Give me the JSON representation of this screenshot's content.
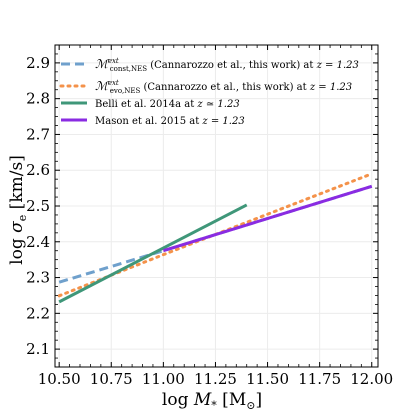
{
  "chart_data": {
    "type": "line",
    "xlabel": "log M_* [M_⊙]",
    "ylabel": "log σ_e [km/s]",
    "xlim": [
      10.48,
      12.03
    ],
    "ylim": [
      2.05,
      2.95
    ],
    "x_ticks": [
      "10.50",
      "10.75",
      "11.00",
      "11.25",
      "11.50",
      "11.75",
      "12.00"
    ],
    "x_tick_values": [
      10.5,
      10.75,
      11.0,
      11.25,
      11.5,
      11.75,
      12.0
    ],
    "y_ticks": [
      "2.1",
      "2.2",
      "2.3",
      "2.4",
      "2.5",
      "2.6",
      "2.7",
      "2.8",
      "2.9"
    ],
    "y_tick_values": [
      2.1,
      2.2,
      2.3,
      2.4,
      2.5,
      2.6,
      2.7,
      2.8,
      2.9
    ],
    "grid": true,
    "legend_placement": "top-left",
    "series": [
      {
        "name": "(Cannarozzo et al., this work) at z = 1.23",
        "legend_symbol": "M^{ext}_{const,NES}",
        "style": "dashed",
        "color": "#6fa0cc",
        "x": [
          10.5,
          11.0,
          12.0
        ],
        "y": [
          2.287,
          2.375,
          2.555
        ]
      },
      {
        "name": "(Cannarozzo et al., this work) at z = 1.23",
        "legend_symbol": "M^{ext}_{evo,NES}",
        "style": "dotted",
        "color": "#f4924a",
        "x": [
          10.5,
          11.0,
          11.5,
          12.0
        ],
        "y": [
          2.249,
          2.364,
          2.477,
          2.59
        ]
      },
      {
        "name": "Belli et al. 2014a at z ≃ 1.23",
        "style": "solid",
        "color": "#3f9779",
        "x": [
          10.5,
          11.4
        ],
        "y": [
          2.232,
          2.503
        ]
      },
      {
        "name": "Mason et al. 2015 at z = 1.23",
        "style": "solid",
        "color": "#8a2be2",
        "x": [
          11.0,
          12.0
        ],
        "y": [
          2.375,
          2.555
        ]
      }
    ],
    "legend": [
      {
        "symbol_main": "ℳ",
        "sup": "ext",
        "sub": "const,NES",
        "text": " (Cannarozzo et al., this work) at ",
        "zexpr": "z = 1.23"
      },
      {
        "symbol_main": "ℳ",
        "sup": "ext",
        "sub": "evo,NES",
        "text": " (Cannarozzo et al., this work) at ",
        "zexpr": "z = 1.23"
      },
      {
        "text": "Belli et al. 2014a at ",
        "zexpr": "z ≃ 1.23"
      },
      {
        "text": "Mason et al. 2015 at ",
        "zexpr": "z = 1.23"
      }
    ]
  }
}
